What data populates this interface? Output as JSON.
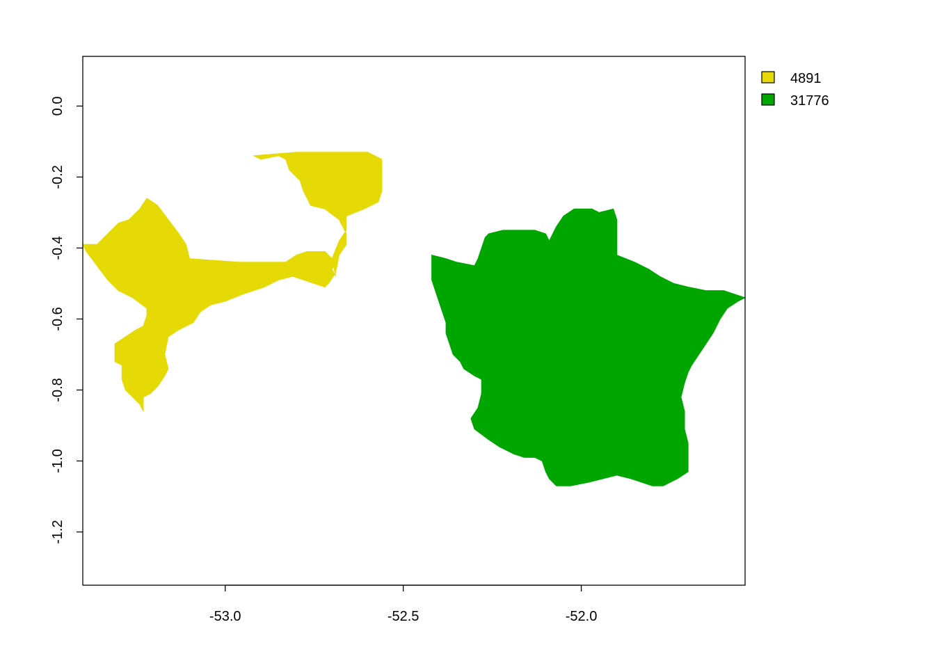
{
  "chart_data": {
    "type": "raster-map",
    "title": "",
    "xlabel": "",
    "ylabel": "",
    "xlim": [
      -53.4,
      -51.54
    ],
    "ylim": [
      -1.35,
      0.14
    ],
    "x_ticks": [
      {
        "value": -53.0,
        "label": "-53.0"
      },
      {
        "value": -52.5,
        "label": "-52.5"
      },
      {
        "value": -52.0,
        "label": "-52.0"
      }
    ],
    "y_ticks": [
      {
        "value": 0.0,
        "label": "0.0"
      },
      {
        "value": -0.2,
        "label": "-0.2"
      },
      {
        "value": -0.4,
        "label": "-0.4"
      },
      {
        "value": -0.6,
        "label": "-0.6"
      },
      {
        "value": -0.8,
        "label": "-0.8"
      },
      {
        "value": -1.0,
        "label": "-1.0"
      },
      {
        "value": -1.2,
        "label": "-1.2"
      }
    ],
    "legend": {
      "placement": "right-top",
      "entries": [
        {
          "label": "4891",
          "color": "#E6DA06"
        },
        {
          "label": "31776",
          "color": "#00A600"
        }
      ]
    },
    "regions": [
      {
        "category": "4891",
        "color": "#E6DA06",
        "outline": [
          [
            -53.4,
            -0.39
          ],
          [
            -53.36,
            -0.39
          ],
          [
            -53.34,
            -0.37
          ],
          [
            -53.32,
            -0.35
          ],
          [
            -53.3,
            -0.33
          ],
          [
            -53.27,
            -0.32
          ],
          [
            -53.24,
            -0.29
          ],
          [
            -53.22,
            -0.26
          ],
          [
            -53.19,
            -0.28
          ],
          [
            -53.16,
            -0.32
          ],
          [
            -53.13,
            -0.36
          ],
          [
            -53.11,
            -0.39
          ],
          [
            -53.1,
            -0.43
          ],
          [
            -52.96,
            -0.44
          ],
          [
            -52.83,
            -0.44
          ],
          [
            -52.8,
            -0.42
          ],
          [
            -52.77,
            -0.41
          ],
          [
            -52.72,
            -0.41
          ],
          [
            -52.69,
            -0.44
          ],
          [
            -52.7,
            -0.46
          ],
          [
            -52.69,
            -0.48
          ],
          [
            -52.7,
            -0.43
          ],
          [
            -52.68,
            -0.38
          ],
          [
            -52.66,
            -0.35
          ],
          [
            -52.66,
            -0.31
          ],
          [
            -52.61,
            -0.29
          ],
          [
            -52.57,
            -0.27
          ],
          [
            -52.56,
            -0.24
          ],
          [
            -52.56,
            -0.15
          ],
          [
            -52.6,
            -0.13
          ],
          [
            -52.7,
            -0.13
          ],
          [
            -52.8,
            -0.13
          ],
          [
            -52.92,
            -0.14
          ],
          [
            -52.9,
            -0.15
          ],
          [
            -52.85,
            -0.14
          ],
          [
            -52.83,
            -0.15
          ],
          [
            -52.82,
            -0.18
          ],
          [
            -52.79,
            -0.21
          ],
          [
            -52.78,
            -0.24
          ],
          [
            -52.76,
            -0.28
          ],
          [
            -52.72,
            -0.29
          ],
          [
            -52.68,
            -0.32
          ],
          [
            -52.66,
            -0.36
          ],
          [
            -52.66,
            -0.39
          ],
          [
            -52.68,
            -0.42
          ],
          [
            -52.69,
            -0.47
          ],
          [
            -52.71,
            -0.5
          ],
          [
            -52.72,
            -0.51
          ],
          [
            -52.78,
            -0.49
          ],
          [
            -52.81,
            -0.48
          ],
          [
            -52.85,
            -0.49
          ],
          [
            -52.89,
            -0.51
          ],
          [
            -52.95,
            -0.53
          ],
          [
            -53.0,
            -0.55
          ],
          [
            -53.04,
            -0.56
          ],
          [
            -53.07,
            -0.58
          ],
          [
            -53.09,
            -0.61
          ],
          [
            -53.13,
            -0.63
          ],
          [
            -53.16,
            -0.65
          ],
          [
            -53.17,
            -0.7
          ],
          [
            -53.16,
            -0.74
          ],
          [
            -53.17,
            -0.76
          ],
          [
            -53.19,
            -0.79
          ],
          [
            -53.21,
            -0.81
          ],
          [
            -53.23,
            -0.82
          ],
          [
            -53.23,
            -0.86
          ],
          [
            -53.24,
            -0.84
          ],
          [
            -53.26,
            -0.82
          ],
          [
            -53.28,
            -0.8
          ],
          [
            -53.29,
            -0.77
          ],
          [
            -53.29,
            -0.73
          ],
          [
            -53.31,
            -0.72
          ],
          [
            -53.31,
            -0.67
          ],
          [
            -53.28,
            -0.65
          ],
          [
            -53.25,
            -0.63
          ],
          [
            -53.23,
            -0.62
          ],
          [
            -53.22,
            -0.59
          ],
          [
            -53.22,
            -0.57
          ],
          [
            -53.26,
            -0.54
          ],
          [
            -53.3,
            -0.52
          ],
          [
            -53.33,
            -0.49
          ],
          [
            -53.36,
            -0.45
          ],
          [
            -53.39,
            -0.41
          ]
        ]
      },
      {
        "category": "31776",
        "color": "#00A600",
        "outline": [
          [
            -52.42,
            -0.42
          ],
          [
            -52.38,
            -0.43
          ],
          [
            -52.35,
            -0.44
          ],
          [
            -52.3,
            -0.45
          ],
          [
            -52.29,
            -0.43
          ],
          [
            -52.28,
            -0.4
          ],
          [
            -52.27,
            -0.37
          ],
          [
            -52.26,
            -0.36
          ],
          [
            -52.22,
            -0.35
          ],
          [
            -52.17,
            -0.35
          ],
          [
            -52.13,
            -0.35
          ],
          [
            -52.1,
            -0.36
          ],
          [
            -52.09,
            -0.38
          ],
          [
            -52.07,
            -0.34
          ],
          [
            -52.05,
            -0.31
          ],
          [
            -52.02,
            -0.29
          ],
          [
            -51.97,
            -0.29
          ],
          [
            -51.95,
            -0.3
          ],
          [
            -51.91,
            -0.29
          ],
          [
            -51.9,
            -0.32
          ],
          [
            -51.9,
            -0.42
          ],
          [
            -51.85,
            -0.44
          ],
          [
            -51.81,
            -0.46
          ],
          [
            -51.78,
            -0.48
          ],
          [
            -51.74,
            -0.5
          ],
          [
            -51.7,
            -0.51
          ],
          [
            -51.65,
            -0.52
          ],
          [
            -51.6,
            -0.52
          ],
          [
            -51.57,
            -0.53
          ],
          [
            -51.54,
            -0.54
          ],
          [
            -51.56,
            -0.55
          ],
          [
            -51.59,
            -0.57
          ],
          [
            -51.61,
            -0.6
          ],
          [
            -51.63,
            -0.64
          ],
          [
            -51.65,
            -0.67
          ],
          [
            -51.67,
            -0.7
          ],
          [
            -51.69,
            -0.73
          ],
          [
            -51.7,
            -0.75
          ],
          [
            -51.71,
            -0.78
          ],
          [
            -51.72,
            -0.82
          ],
          [
            -51.71,
            -0.86
          ],
          [
            -51.71,
            -0.91
          ],
          [
            -51.7,
            -0.95
          ],
          [
            -51.7,
            -0.99
          ],
          [
            -51.7,
            -1.03
          ],
          [
            -51.73,
            -1.05
          ],
          [
            -51.75,
            -1.06
          ],
          [
            -51.77,
            -1.07
          ],
          [
            -51.8,
            -1.07
          ],
          [
            -51.83,
            -1.06
          ],
          [
            -51.86,
            -1.05
          ],
          [
            -51.9,
            -1.04
          ],
          [
            -51.94,
            -1.05
          ],
          [
            -51.98,
            -1.06
          ],
          [
            -52.03,
            -1.07
          ],
          [
            -52.07,
            -1.07
          ],
          [
            -52.09,
            -1.05
          ],
          [
            -52.1,
            -1.03
          ],
          [
            -52.11,
            -1.0
          ],
          [
            -52.13,
            -0.99
          ],
          [
            -52.16,
            -0.99
          ],
          [
            -52.19,
            -0.98
          ],
          [
            -52.23,
            -0.96
          ],
          [
            -52.26,
            -0.94
          ],
          [
            -52.3,
            -0.91
          ],
          [
            -52.31,
            -0.88
          ],
          [
            -52.29,
            -0.85
          ],
          [
            -52.28,
            -0.81
          ],
          [
            -52.28,
            -0.77
          ],
          [
            -52.3,
            -0.76
          ],
          [
            -52.33,
            -0.74
          ],
          [
            -52.34,
            -0.72
          ],
          [
            -52.36,
            -0.7
          ],
          [
            -52.37,
            -0.67
          ],
          [
            -52.38,
            -0.64
          ],
          [
            -52.38,
            -0.61
          ],
          [
            -52.39,
            -0.58
          ],
          [
            -52.4,
            -0.55
          ],
          [
            -52.41,
            -0.52
          ],
          [
            -52.42,
            -0.49
          ],
          [
            -52.42,
            -0.45
          ]
        ]
      }
    ]
  }
}
